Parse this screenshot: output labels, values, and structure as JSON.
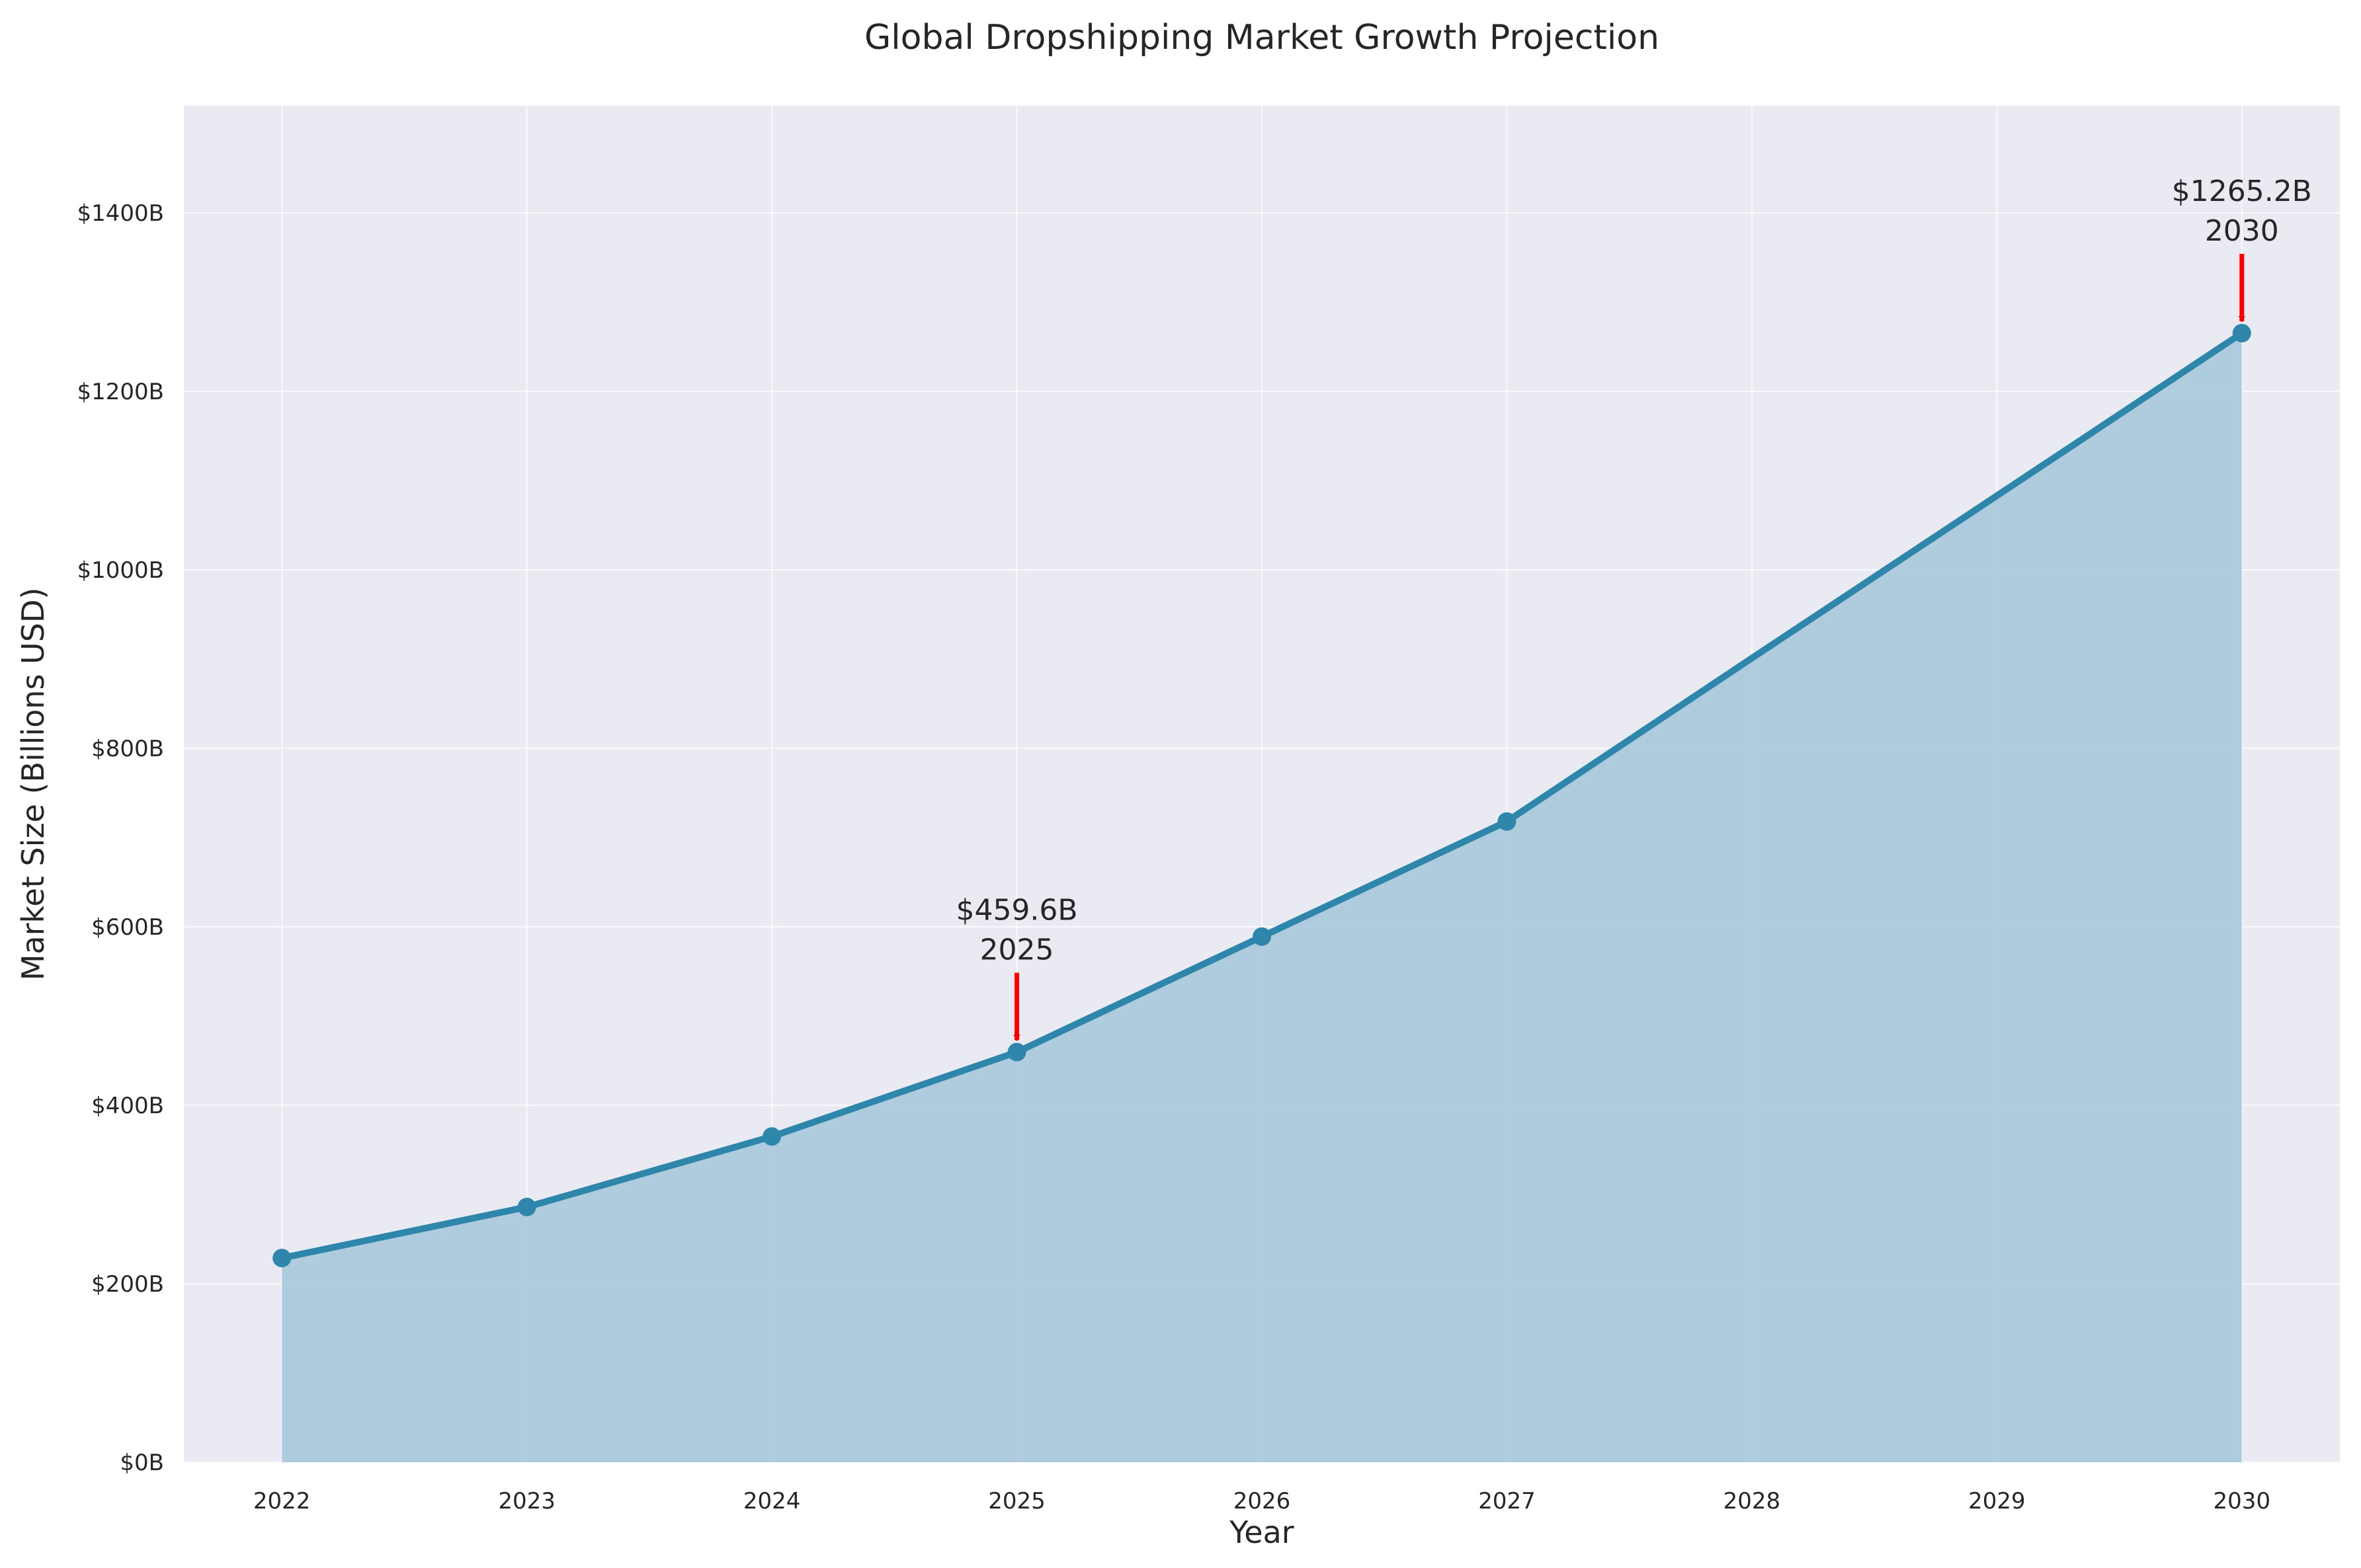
{
  "chart_data": {
    "type": "area",
    "title": "Global Dropshipping Market Growth Projection",
    "xlabel": "Year",
    "ylabel": "Market Size (Billions USD)",
    "xlim": [
      2021.6,
      2030.4
    ],
    "ylim": [
      0,
      1520
    ],
    "grid": true,
    "x_ticks": [
      2022,
      2023,
      2024,
      2025,
      2026,
      2027,
      2028,
      2029,
      2030
    ],
    "y_ticks": [
      0,
      200,
      400,
      600,
      800,
      1000,
      1200,
      1400
    ],
    "y_tick_labels": [
      "$0B",
      "$200B",
      "$400B",
      "$600B",
      "$800B",
      "$1000B",
      "$1200B",
      "$1400B"
    ],
    "series": [
      {
        "x": [
          2022,
          2023,
          2024,
          2025,
          2026,
          2027,
          2028,
          2029,
          2030
        ],
        "values": [
          228.8,
          286.0,
          365.0,
          459.6,
          589.0,
          718.0,
          901.0,
          1083.0,
          1265.2
        ],
        "markers": [
          true,
          true,
          true,
          true,
          true,
          true,
          false,
          false,
          true
        ]
      }
    ],
    "annotations": [
      {
        "x": 2025,
        "y": 459.6,
        "value_text": "$459.6B",
        "year_text": "2025"
      },
      {
        "x": 2030,
        "y": 1265.2,
        "value_text": "$1265.2B",
        "year_text": "2030"
      }
    ],
    "colors": {
      "line": "#2e86ab",
      "fill": "#a9c8dc",
      "plot_background": "#eaeaf2",
      "arrow": "#ff0000"
    }
  }
}
